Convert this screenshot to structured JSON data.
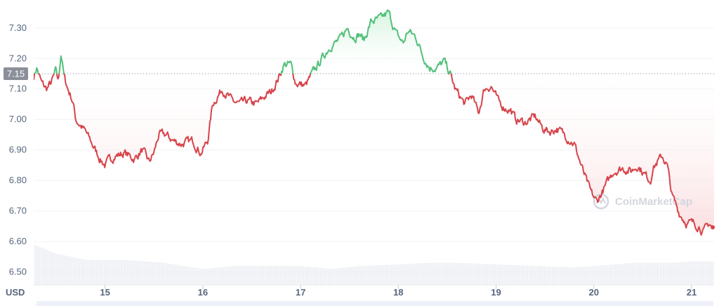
{
  "chart_data": {
    "type": "area",
    "title": "",
    "xlabel": "",
    "ylabel": "",
    "currency_label": "USD",
    "reference_price": 7.15,
    "reference_label": "7.15",
    "ylim": [
      6.46,
      7.38
    ],
    "y_ticks": [
      {
        "value": 6.5,
        "label": "6.50"
      },
      {
        "value": 6.6,
        "label": "6.60"
      },
      {
        "value": 6.7,
        "label": "6.70"
      },
      {
        "value": 6.8,
        "label": "6.80"
      },
      {
        "value": 6.9,
        "label": "6.90"
      },
      {
        "value": 7.0,
        "label": "7.00"
      },
      {
        "value": 7.1,
        "label": "7.10"
      },
      {
        "value": 7.2,
        "label": "7.20"
      },
      {
        "value": 7.3,
        "label": "7.30"
      }
    ],
    "xlim": [
      14.27,
      21.23
    ],
    "x_ticks": [
      {
        "value": 15,
        "label": "15"
      },
      {
        "value": 16,
        "label": "16"
      },
      {
        "value": 17,
        "label": "17"
      },
      {
        "value": 18,
        "label": "18"
      },
      {
        "value": 19,
        "label": "19"
      },
      {
        "value": 20,
        "label": "20"
      },
      {
        "value": 21,
        "label": "21"
      }
    ],
    "x_unit": "day of month",
    "price_series": {
      "x": [
        14.27,
        14.3,
        14.35,
        14.4,
        14.45,
        14.5,
        14.52,
        14.55,
        14.58,
        14.62,
        14.67,
        14.7,
        14.8,
        14.9,
        14.95,
        15.0,
        15.05,
        15.1,
        15.2,
        15.3,
        15.38,
        15.45,
        15.5,
        15.55,
        15.62,
        15.7,
        15.78,
        15.9,
        15.98,
        16.05,
        16.1,
        16.2,
        16.3,
        16.38,
        16.45,
        16.55,
        16.65,
        16.7,
        16.78,
        16.83,
        16.9,
        16.95,
        17.05,
        17.12,
        17.2,
        17.3,
        17.4,
        17.48,
        17.55,
        17.6,
        17.65,
        17.72,
        17.82,
        17.9,
        17.98,
        18.05,
        18.1,
        18.18,
        18.25,
        18.32,
        18.4,
        18.47,
        18.53,
        18.58,
        18.62,
        18.68,
        18.75,
        18.82,
        18.88,
        18.95,
        19.02,
        19.08,
        19.15,
        19.2,
        19.3,
        19.4,
        19.48,
        19.55,
        19.62,
        19.7,
        19.8,
        19.85,
        19.9,
        19.97,
        20.03,
        20.1,
        20.2,
        20.3,
        20.38,
        20.45,
        20.52,
        20.58,
        20.6,
        20.65,
        20.7,
        20.75,
        20.8,
        20.88,
        20.95,
        21.02,
        21.08,
        21.12,
        21.18,
        21.23
      ],
      "y": [
        7.14,
        7.17,
        7.12,
        7.1,
        7.12,
        7.16,
        7.12,
        7.22,
        7.14,
        7.1,
        7.06,
        7.0,
        6.96,
        6.9,
        6.87,
        6.85,
        6.87,
        6.88,
        6.89,
        6.87,
        6.9,
        6.86,
        6.89,
        6.95,
        6.95,
        6.93,
        6.92,
        6.93,
        6.89,
        6.93,
        7.05,
        7.1,
        7.06,
        7.05,
        7.06,
        7.05,
        7.08,
        7.09,
        7.14,
        7.18,
        7.18,
        7.12,
        7.11,
        7.15,
        7.19,
        7.24,
        7.26,
        7.3,
        7.27,
        7.28,
        7.26,
        7.32,
        7.33,
        7.35,
        7.28,
        7.25,
        7.29,
        7.27,
        7.21,
        7.17,
        7.17,
        7.19,
        7.15,
        7.1,
        7.08,
        7.05,
        7.08,
        7.02,
        7.1,
        7.11,
        7.06,
        7.04,
        7.03,
        7.0,
        6.99,
        7.01,
        6.97,
        6.96,
        6.97,
        6.95,
        6.92,
        6.87,
        6.82,
        6.76,
        6.73,
        6.77,
        6.83,
        6.84,
        6.83,
        6.85,
        6.82,
        6.8,
        6.84,
        6.86,
        6.88,
        6.85,
        6.75,
        6.69,
        6.66,
        6.66,
        6.65,
        6.63,
        6.66,
        6.64
      ]
    },
    "volume_series": {
      "x": [
        14.27,
        14.5,
        14.8,
        15.2,
        15.6,
        16.0,
        16.3,
        16.7,
        17.0,
        17.3,
        17.6,
        18.0,
        18.3,
        18.6,
        19.0,
        19.4,
        19.8,
        20.0,
        20.4,
        20.8,
        21.0,
        21.23
      ],
      "y": [
        6.59,
        6.56,
        6.54,
        6.54,
        6.53,
        6.51,
        6.52,
        6.52,
        6.52,
        6.51,
        6.52,
        6.525,
        6.53,
        6.53,
        6.525,
        6.52,
        6.515,
        6.52,
        6.53,
        6.53,
        6.535,
        6.535
      ]
    },
    "grid": true,
    "legend": "none",
    "colors": {
      "up_line": "#52c07a",
      "down_line": "#d6444a",
      "up_fill_top": "#c9f0d6",
      "down_fill_bottom": "#f8c6c8",
      "grid": "#eff2f5",
      "axis_text": "#58667e",
      "reference_badge": "#8a8f99",
      "volume": "#e8ebf0",
      "scrollbar": "#eef0fa"
    }
  },
  "watermark": {
    "text": "CoinMarketCap",
    "icon": "coinmarketcap-logo-icon"
  }
}
